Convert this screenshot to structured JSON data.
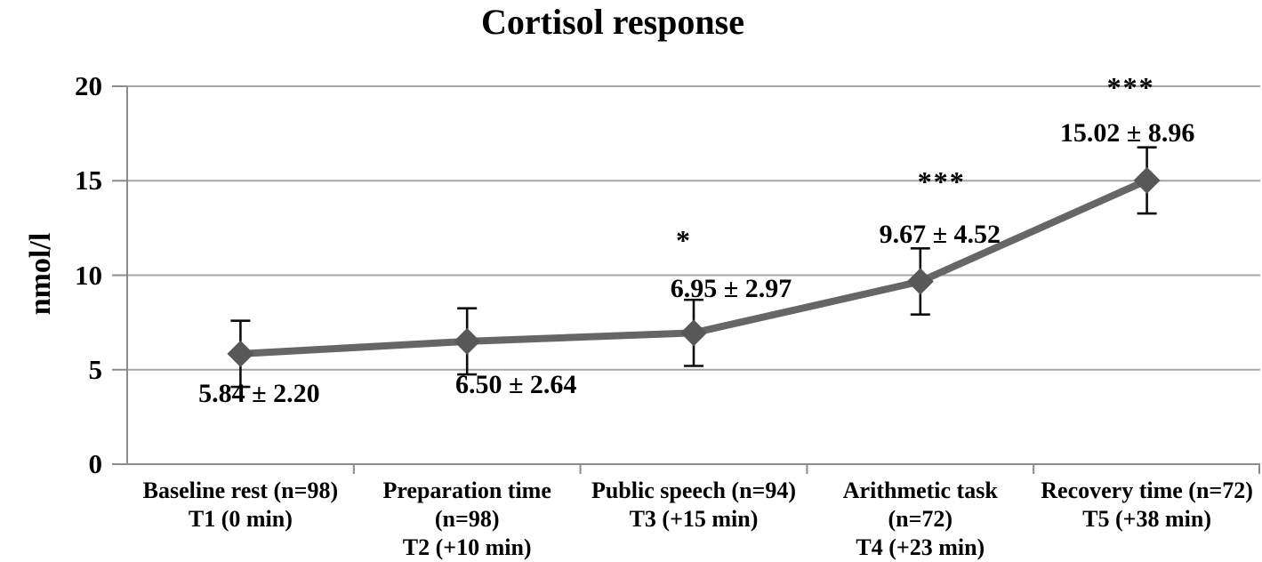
{
  "title": "Cortisol response",
  "chart_data": {
    "type": "line",
    "title": "Cortisol response",
    "ylabel": "nmol/l",
    "xlabel": "",
    "ylim": [
      0,
      20
    ],
    "yticks": [
      0,
      5,
      10,
      15,
      20
    ],
    "grid": "horizontal",
    "legend": "none",
    "marker": "diamond",
    "categories": [
      [
        "Baseline rest (n=98)",
        "T1 (0 min)"
      ],
      [
        "Preparation time",
        "(n=98)",
        "T2 (+10 min)"
      ],
      [
        "Public speech (n=94)",
        "T3 (+15 min)"
      ],
      [
        "Arithmetic task",
        "(n=72)",
        "T4 (+23 min)"
      ],
      [
        "Recovery time (n=72)",
        "T5 (+38 min)"
      ]
    ],
    "series": [
      {
        "name": "Cortisol",
        "values": [
          5.84,
          6.5,
          6.95,
          9.67,
          15.02
        ],
        "sd": [
          2.2,
          2.64,
          2.97,
          4.52,
          8.96
        ],
        "point_labels": [
          "5.84 ± 2.20",
          "6.50 ± 2.64",
          "6.95 ± 2.97",
          "9.67 ± 4.52",
          "15.02 ± 8.96"
        ],
        "significance": [
          "",
          "",
          "*",
          "***",
          "***"
        ],
        "error_bar_half_height_drawn": 1.75
      }
    ],
    "colors": {
      "background": "#ffffff",
      "text": "#000000",
      "gridline": "#a6a6a6",
      "axis": "#8c8c8c",
      "line": "#666666",
      "marker": "#585858",
      "error_bar": "#0d0d0d"
    }
  }
}
